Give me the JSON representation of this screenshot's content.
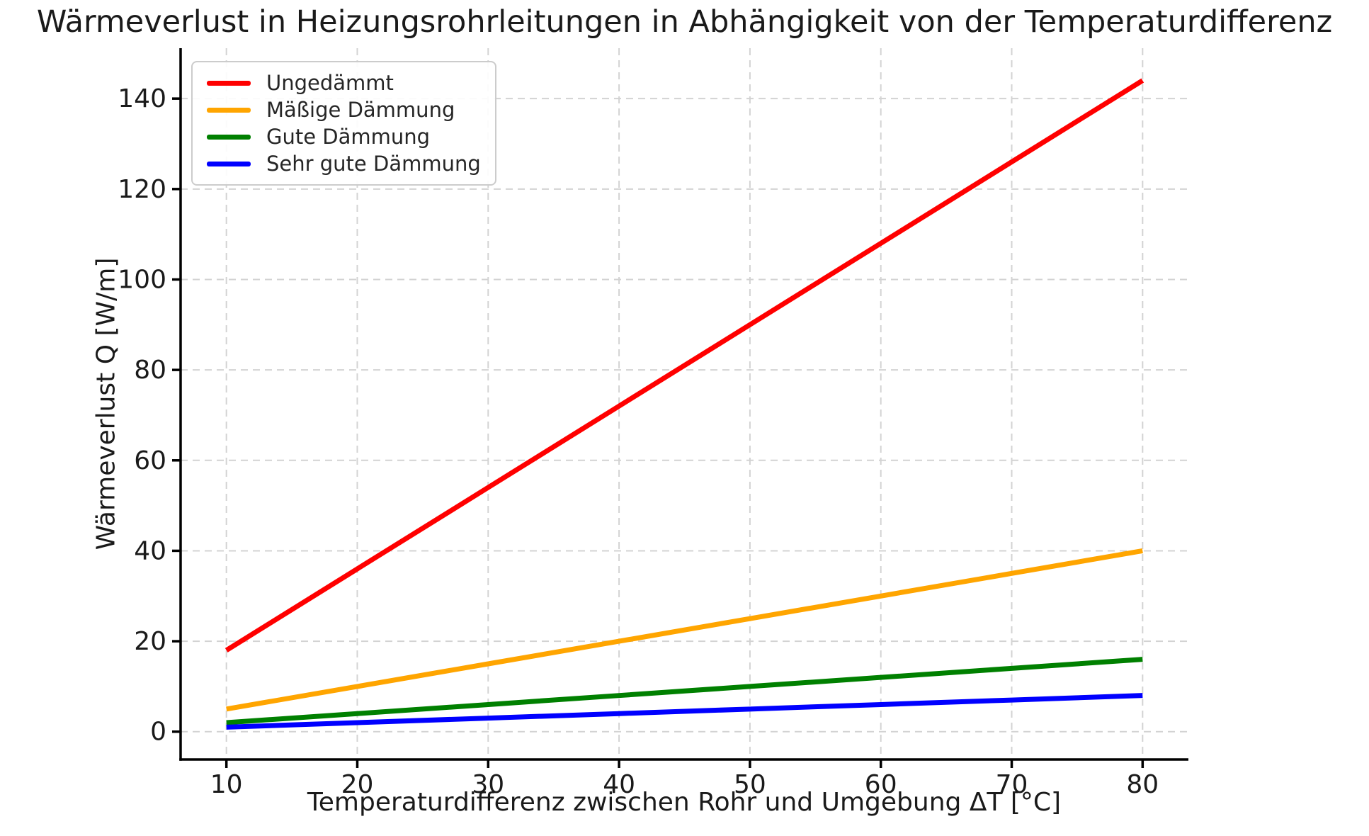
{
  "chart_data": {
    "type": "line",
    "title": "Wärmeverlust in Heizungsrohrleitungen in Abhängigkeit von der Temperaturdifferenz",
    "xlabel": "Temperaturdifferenz zwischen Rohr und Umgebung ΔT [°C]",
    "ylabel": "Wärmeverlust Q [W/m]",
    "x": [
      10,
      20,
      30,
      40,
      50,
      60,
      70,
      80
    ],
    "series": [
      {
        "name": "Ungedämmt",
        "color": "#ff0000",
        "values": [
          18,
          36,
          54,
          72,
          90,
          108,
          126,
          144
        ]
      },
      {
        "name": "Mäßige Dämmung",
        "color": "#ffa500",
        "values": [
          5,
          10,
          15,
          20,
          25,
          30,
          35,
          40
        ]
      },
      {
        "name": "Gute Dämmung",
        "color": "#008000",
        "values": [
          2,
          4,
          6,
          8,
          10,
          12,
          14,
          16
        ]
      },
      {
        "name": "Sehr gute Dämmung",
        "color": "#0000ff",
        "values": [
          1,
          2,
          3,
          4,
          5,
          6,
          7,
          8
        ]
      }
    ],
    "x_ticks": [
      10,
      20,
      30,
      40,
      50,
      60,
      70,
      80
    ],
    "y_ticks": [
      0,
      20,
      40,
      60,
      80,
      100,
      120,
      140
    ],
    "xlim": [
      6.5,
      83.5
    ],
    "ylim": [
      -6.15,
      151.15
    ],
    "grid": true,
    "grid_style": "dashed",
    "legend_position": "upper left"
  },
  "colors": {
    "background": "#ffffff",
    "text": "#1a1a1a",
    "spine": "#000000",
    "tick": "#000000",
    "grid": "#d3d3d3",
    "legend_border": "#cccccc",
    "legend_background": "#ffffff"
  }
}
